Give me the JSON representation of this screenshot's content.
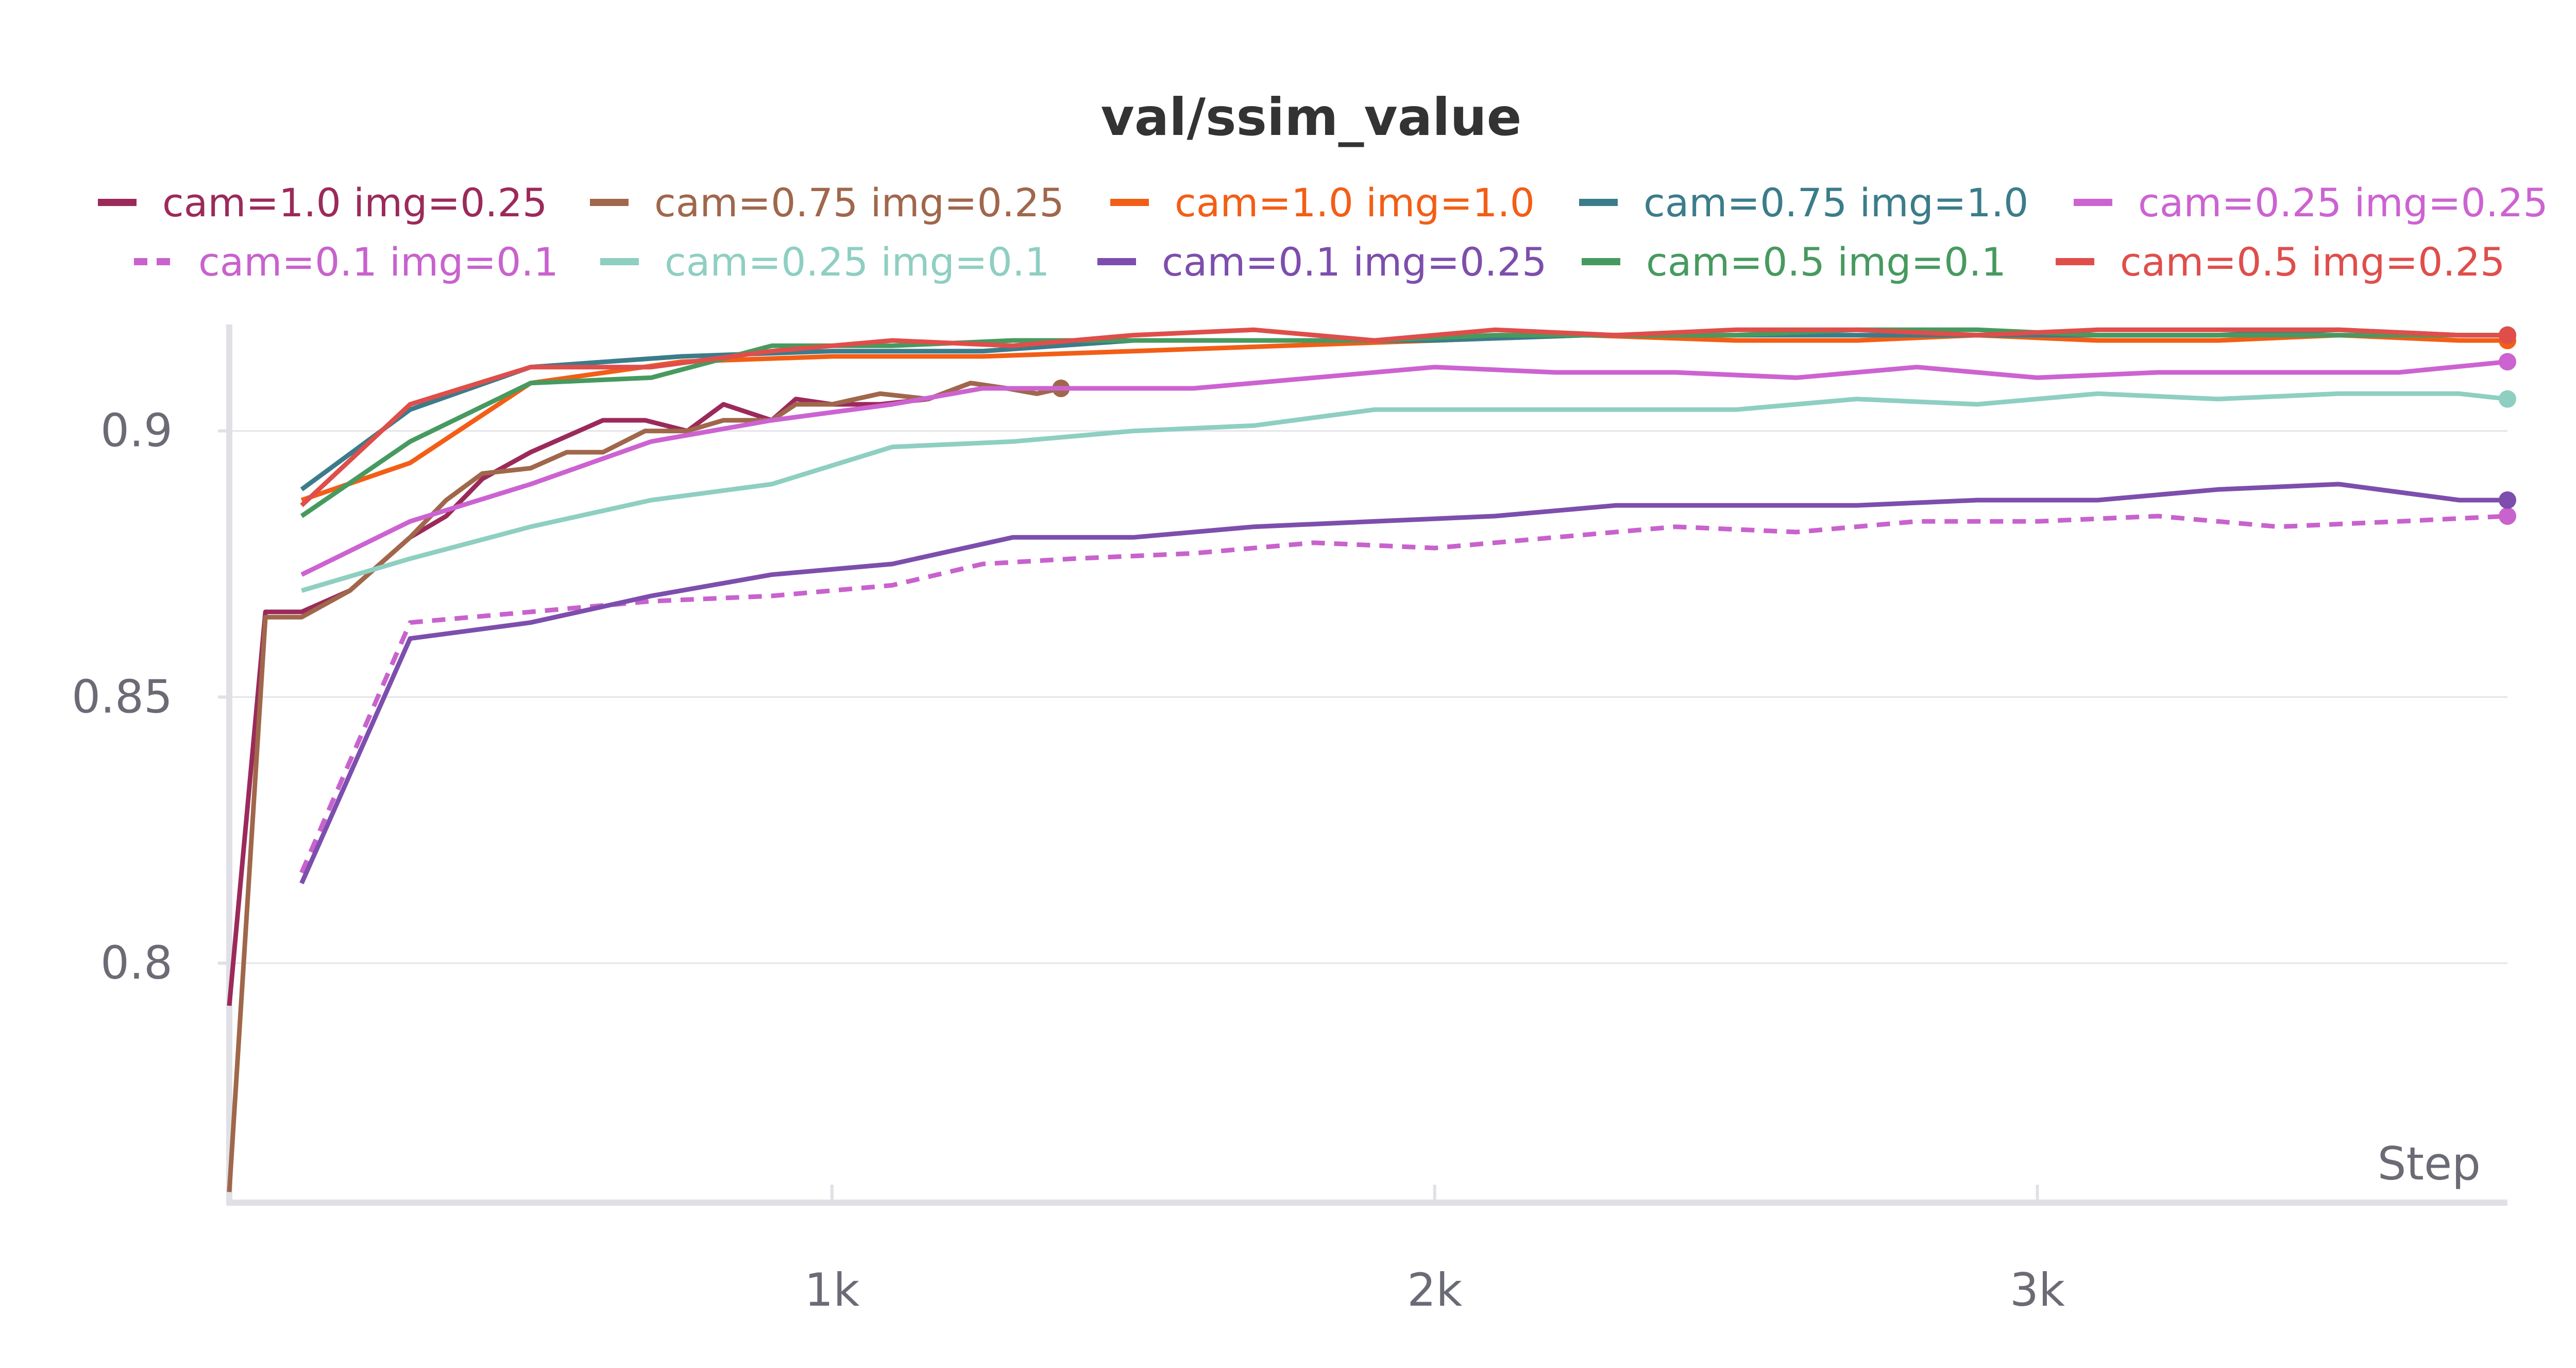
{
  "chart_data": {
    "type": "line",
    "title": "val/ssim_value",
    "xlabel": "Step",
    "ylabel": "",
    "xlim": [
      0,
      3780
    ],
    "ylim": [
      0.755,
      0.92
    ],
    "grid": "horizontal",
    "legend_position": "top",
    "x_ticks": [
      {
        "value": 1000,
        "label": "1k"
      },
      {
        "value": 2000,
        "label": "2k"
      },
      {
        "value": 3000,
        "label": "3k"
      }
    ],
    "y_ticks": [
      {
        "value": 0.8,
        "label": "0.8"
      },
      {
        "value": 0.85,
        "label": "0.85"
      },
      {
        "value": 0.9,
        "label": "0.9"
      }
    ],
    "series": [
      {
        "name": "cam=1.0 img=0.25",
        "color": "#9b2a5a",
        "dash": false,
        "x": [
          0,
          60,
          120,
          200,
          300,
          360,
          420,
          500,
          560,
          620,
          690,
          760,
          820,
          900,
          940,
          1000,
          1080,
          1160,
          1230,
          1290,
          1340,
          1380
        ],
        "y": [
          0.792,
          0.866,
          0.866,
          0.87,
          0.88,
          0.884,
          0.891,
          0.896,
          0.899,
          0.902,
          0.902,
          0.9,
          0.905,
          0.902,
          0.906,
          0.905,
          0.905,
          0.906,
          0.909,
          0.908,
          0.907,
          0.908
        ]
      },
      {
        "name": "cam=0.75 img=0.25",
        "color": "#a0674b",
        "dash": false,
        "x": [
          0,
          60,
          120,
          200,
          300,
          360,
          420,
          500,
          560,
          620,
          690,
          760,
          820,
          900,
          940,
          1000,
          1080,
          1160,
          1230,
          1290,
          1340,
          1380
        ],
        "y": [
          0.757,
          0.865,
          0.865,
          0.87,
          0.88,
          0.887,
          0.892,
          0.893,
          0.896,
          0.896,
          0.9,
          0.9,
          0.902,
          0.902,
          0.905,
          0.905,
          0.907,
          0.906,
          0.909,
          0.908,
          0.907,
          0.908
        ]
      },
      {
        "name": "cam=1.0 img=1.0",
        "color": "#f25e16",
        "dash": false,
        "x": [
          120,
          300,
          500,
          750,
          1000,
          1250,
          1500,
          1750,
          2000,
          2250,
          2500,
          2700,
          2900,
          3100,
          3300,
          3500,
          3700,
          3780
        ],
        "y": [
          0.887,
          0.894,
          0.909,
          0.913,
          0.914,
          0.914,
          0.915,
          0.916,
          0.917,
          0.918,
          0.917,
          0.917,
          0.918,
          0.917,
          0.917,
          0.918,
          0.917,
          0.917
        ]
      },
      {
        "name": "cam=0.75 img=1.0",
        "color": "#3b7c8a",
        "dash": false,
        "x": [
          120,
          300,
          500,
          750,
          1000,
          1250,
          1500,
          1750,
          2000,
          2250,
          2500,
          2700,
          2900,
          3100,
          3300,
          3500,
          3700,
          3780
        ],
        "y": [
          0.889,
          0.904,
          0.912,
          0.914,
          0.915,
          0.915,
          0.917,
          0.917,
          0.917,
          0.918,
          0.918,
          0.918,
          0.918,
          0.918,
          0.918,
          0.919,
          0.918,
          0.918
        ]
      },
      {
        "name": "cam=0.25 img=0.25",
        "color": "#cc63d1",
        "dash": false,
        "x": [
          120,
          300,
          500,
          700,
          900,
          1100,
          1250,
          1400,
          1600,
          1800,
          2000,
          2200,
          2400,
          2600,
          2800,
          3000,
          3200,
          3400,
          3600,
          3780
        ],
        "y": [
          0.873,
          0.883,
          0.89,
          0.898,
          0.902,
          0.905,
          0.908,
          0.908,
          0.908,
          0.91,
          0.912,
          0.911,
          0.911,
          0.91,
          0.912,
          0.91,
          0.911,
          0.911,
          0.911,
          0.913
        ]
      },
      {
        "name": "cam=0.1 img=0.1",
        "color": "#c862cd",
        "dash": true,
        "x": [
          120,
          300,
          500,
          700,
          900,
          1100,
          1250,
          1400,
          1600,
          1800,
          2000,
          2200,
          2400,
          2600,
          2800,
          3000,
          3200,
          3400,
          3600,
          3780
        ],
        "y": [
          0.817,
          0.864,
          0.866,
          0.868,
          0.869,
          0.871,
          0.875,
          0.876,
          0.877,
          0.879,
          0.878,
          0.88,
          0.882,
          0.881,
          0.883,
          0.883,
          0.884,
          0.882,
          0.883,
          0.884
        ]
      },
      {
        "name": "cam=0.25 img=0.1",
        "color": "#8ecfc2",
        "dash": false,
        "x": [
          120,
          300,
          500,
          700,
          900,
          1100,
          1300,
          1500,
          1700,
          1900,
          2100,
          2300,
          2500,
          2700,
          2900,
          3100,
          3300,
          3500,
          3700,
          3780
        ],
        "y": [
          0.87,
          0.876,
          0.882,
          0.887,
          0.89,
          0.897,
          0.898,
          0.9,
          0.901,
          0.904,
          0.904,
          0.904,
          0.904,
          0.906,
          0.905,
          0.907,
          0.906,
          0.907,
          0.907,
          0.906
        ]
      },
      {
        "name": "cam=0.1 img=0.25",
        "color": "#7d4ead",
        "dash": false,
        "x": [
          120,
          300,
          500,
          700,
          900,
          1100,
          1300,
          1500,
          1700,
          1900,
          2100,
          2300,
          2500,
          2700,
          2900,
          3100,
          3300,
          3500,
          3700,
          3780
        ],
        "y": [
          0.815,
          0.861,
          0.864,
          0.869,
          0.873,
          0.875,
          0.88,
          0.88,
          0.882,
          0.883,
          0.884,
          0.886,
          0.886,
          0.886,
          0.887,
          0.887,
          0.889,
          0.89,
          0.887,
          0.887
        ]
      },
      {
        "name": "cam=0.5 img=0.1",
        "color": "#479a5f",
        "dash": false,
        "x": [
          120,
          300,
          500,
          700,
          900,
          1100,
          1300,
          1500,
          1700,
          1900,
          2100,
          2300,
          2500,
          2700,
          2900,
          3100,
          3300,
          3500,
          3700,
          3780
        ],
        "y": [
          0.884,
          0.898,
          0.909,
          0.91,
          0.916,
          0.916,
          0.917,
          0.917,
          0.917,
          0.917,
          0.918,
          0.918,
          0.918,
          0.919,
          0.919,
          0.918,
          0.918,
          0.918,
          0.918,
          0.918
        ]
      },
      {
        "name": "cam=0.5 img=0.25",
        "color": "#df4e4b",
        "dash": false,
        "x": [
          120,
          300,
          500,
          700,
          900,
          1100,
          1300,
          1500,
          1700,
          1900,
          2100,
          2300,
          2500,
          2700,
          2900,
          3100,
          3300,
          3500,
          3700,
          3780
        ],
        "y": [
          0.886,
          0.905,
          0.912,
          0.912,
          0.915,
          0.917,
          0.916,
          0.918,
          0.919,
          0.917,
          0.919,
          0.918,
          0.919,
          0.919,
          0.918,
          0.919,
          0.919,
          0.919,
          0.918,
          0.918
        ]
      }
    ]
  }
}
